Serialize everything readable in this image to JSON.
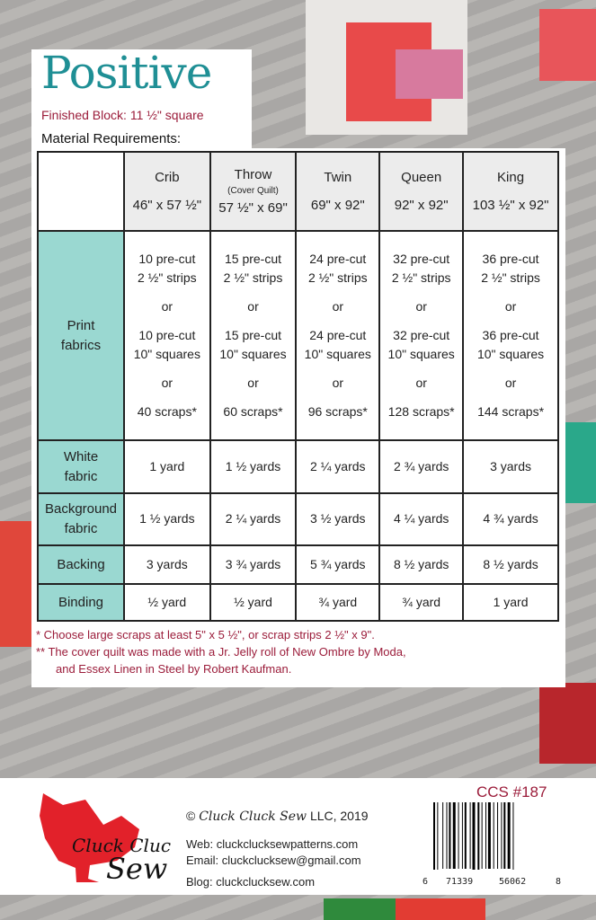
{
  "title": "Positive",
  "finished_block": "Finished Block:  11 ½\" square",
  "material_heading": "Material Requirements:",
  "table": {
    "columns": [
      {
        "name": "Crib",
        "note": "",
        "size": "46\" x 57 ½\""
      },
      {
        "name": "Throw",
        "note": "(Cover Quilt)",
        "size": "57 ½\" x 69\""
      },
      {
        "name": "Twin",
        "note": "",
        "size": "69\" x 92\""
      },
      {
        "name": "Queen",
        "note": "",
        "size": "92\" x 92\""
      },
      {
        "name": "King",
        "note": "",
        "size": "103 ½\" x 92\""
      }
    ],
    "print": {
      "label1": "Print",
      "label2": "fabrics",
      "or": "or",
      "strips": [
        [
          "10 pre-cut",
          "2 ½\" strips"
        ],
        [
          "15 pre-cut",
          "2 ½\" strips"
        ],
        [
          "24 pre-cut",
          "2 ½\" strips"
        ],
        [
          "32 pre-cut",
          "2 ½\" strips"
        ],
        [
          "36 pre-cut",
          "2 ½\" strips"
        ]
      ],
      "squares": [
        [
          "10 pre-cut",
          "10\" squares"
        ],
        [
          "15 pre-cut",
          "10\" squares"
        ],
        [
          "24 pre-cut",
          "10\" squares"
        ],
        [
          "32 pre-cut",
          "10\" squares"
        ],
        [
          "36 pre-cut",
          "10\" squares"
        ]
      ],
      "scraps": [
        "40 scraps*",
        "60 scraps*",
        "96 scraps*",
        "128 scraps*",
        "144 scraps*"
      ]
    },
    "rows": [
      {
        "l1": "White",
        "l2": "fabric",
        "values": [
          "1 yard",
          "1 ½ yards",
          "2 ¼ yards",
          "2 ¾ yards",
          "3 yards"
        ]
      },
      {
        "l1": "Background",
        "l2": "fabric",
        "values": [
          "1 ½ yards",
          "2 ¼ yards",
          "3 ½ yards",
          "4 ¼ yards",
          "4 ¾ yards"
        ]
      },
      {
        "l1": "Backing",
        "l2": "",
        "values": [
          "3 yards",
          "3 ¾ yards",
          "5 ¾ yards",
          "8 ½ yards",
          "8 ½ yards"
        ]
      },
      {
        "l1": "Binding",
        "l2": "",
        "values": [
          "½ yard",
          "½ yard",
          "¾ yard",
          "¾ yard",
          "1 yard"
        ]
      }
    ]
  },
  "notes": [
    "*  Choose large scraps at least 5\" x 5 ½\", or scrap strips 2 ½\" x 9\".",
    "** The cover quilt was made with a Jr. Jelly roll of New Ombre by Moda,",
    "and Essex Linen in Steel by Robert Kaufman."
  ],
  "footer": {
    "logo_text": [
      "Cluck Cluck",
      "Sew"
    ],
    "copyright_symbol": "©",
    "brand": "Cluck Cluck Sew",
    "copyright_rest": "LLC, 2019",
    "web": "Web: cluckclucksewpatterns.com",
    "email": "Email: cluckclucksew@gmail.com",
    "blog": "Blog:  cluckclucksew.com",
    "code": "CCS #187",
    "barcode": [
      "6",
      "71339",
      "56062",
      "8"
    ]
  },
  "colors": {
    "teal": "#1f8f95",
    "maroon": "#9b1c3a",
    "label_bg": "#9ad8d1",
    "hen_red": "#e2212a"
  }
}
